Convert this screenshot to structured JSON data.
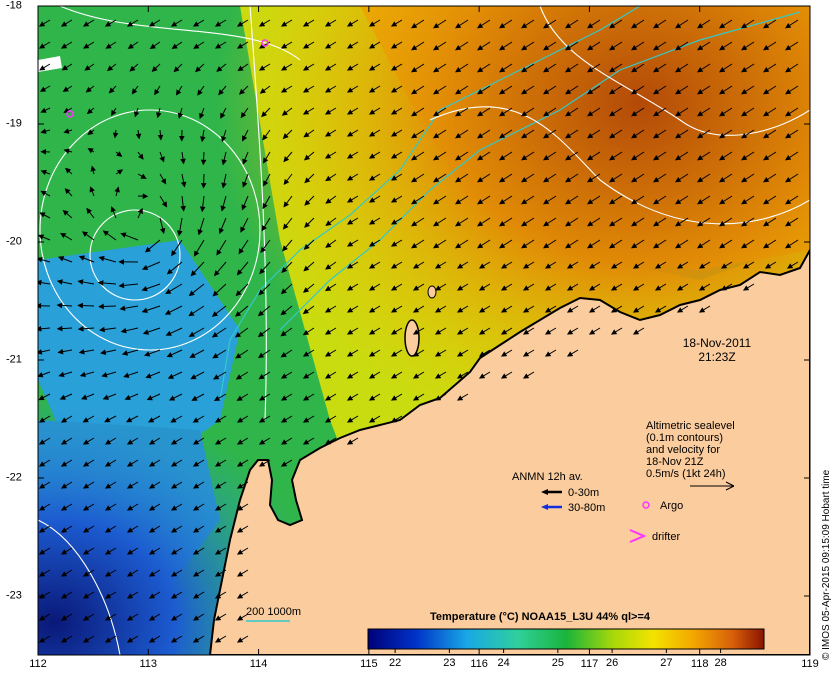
{
  "map": {
    "type": "sea-surface-temperature map",
    "lon_ticks": [
      "112",
      "113",
      "114",
      "115",
      "116",
      "117",
      "118",
      "119"
    ],
    "lat_ticks": [
      "-18",
      "-19",
      "-20",
      "-21",
      "-22",
      "-23"
    ],
    "lon_range": [
      112,
      119
    ],
    "lat_range": [
      -23.5,
      -18
    ],
    "colors": {
      "land": "#fbcd9e",
      "coast": "#000000",
      "contour": "#ffffff",
      "isobath": "#33c9c9",
      "argo": "#ff33ff",
      "drifter": "#ff33ff",
      "anmn_surface": "#000000",
      "anmn_deep": "#1030e0"
    }
  },
  "date_line1": "18-Nov-2011",
  "date_line2": "21:23Z",
  "altimetry": {
    "line1": "Altimetric sealevel",
    "line2": "(0.1m contours)",
    "line3": "and velocity for",
    "line4": "18-Nov 21Z",
    "line5": "0.5m/s (1kt 24h)"
  },
  "anmn": {
    "title": "ANMN 12h av.",
    "row1": "0-30m",
    "row2": "30-80m"
  },
  "argo_label": "Argo",
  "drifter_label": "drifter",
  "colorbar": {
    "title": "Temperature (°C) NOAA15_L3U 44% ql>=4",
    "ticks": [
      "22",
      "23",
      "24",
      "25",
      "26",
      "27",
      "28"
    ],
    "range": [
      21.5,
      28.8
    ]
  },
  "isobath_label": "200  1000m",
  "credit": "© IMOS 05-Apr-2015 09:15:09 Hobart time"
}
